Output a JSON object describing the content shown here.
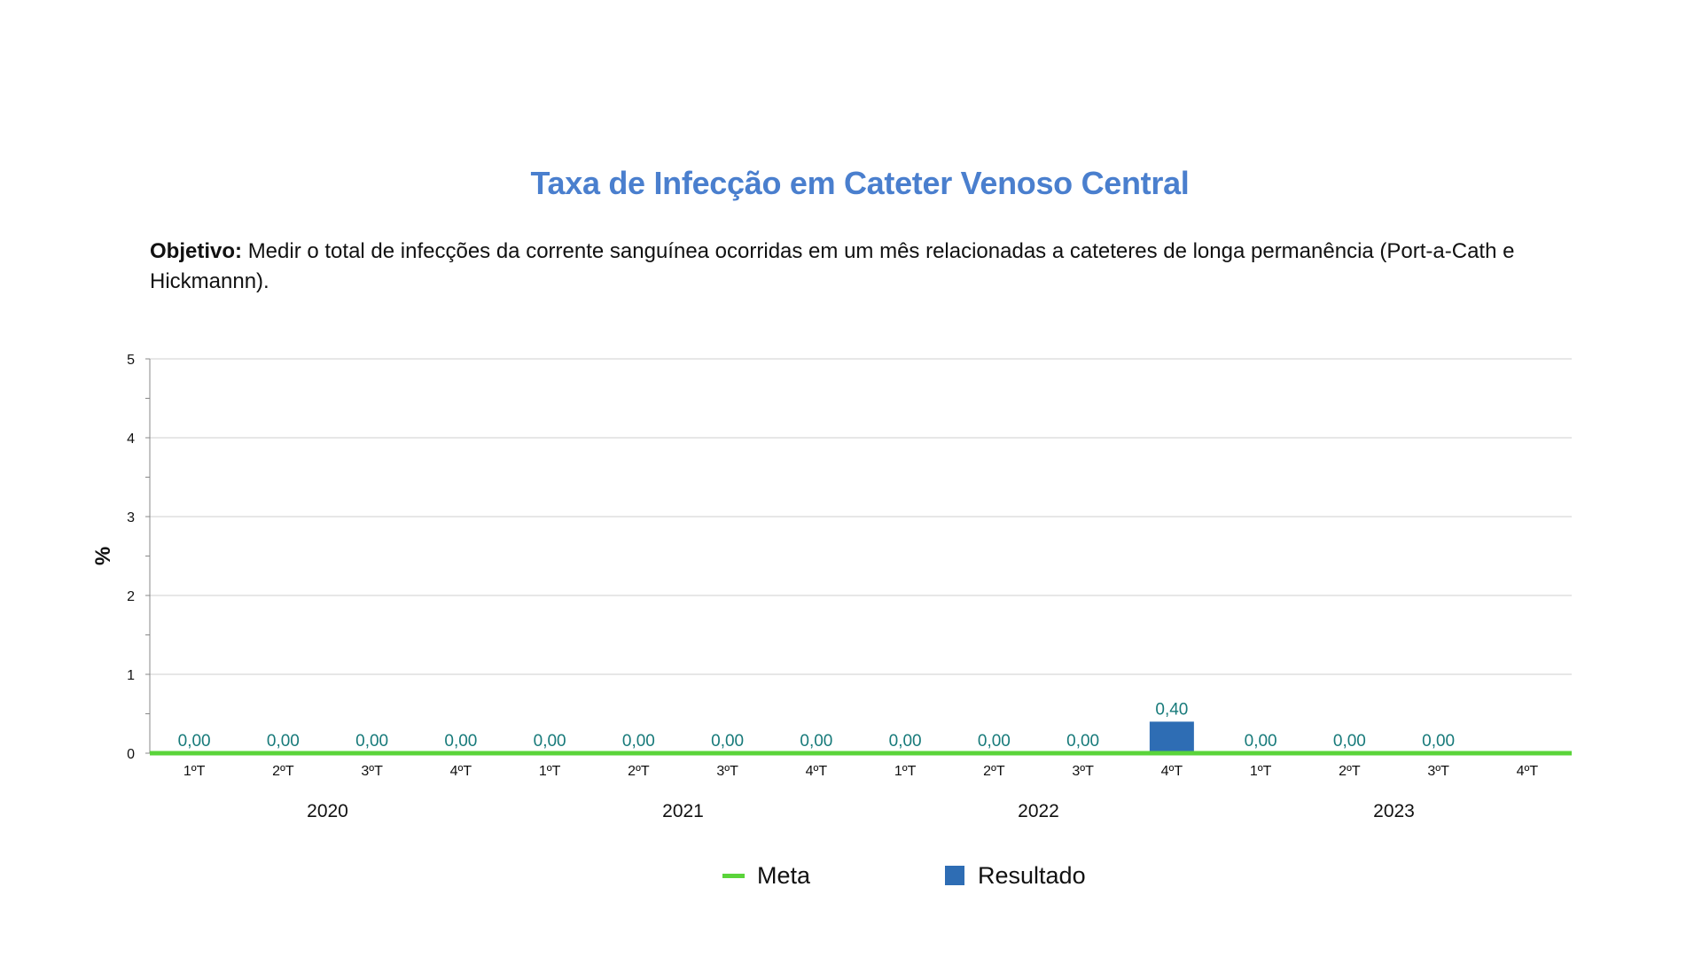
{
  "page": {
    "title": "Taxa de Infecção em Cateter Venoso Central",
    "objective_label": "Objetivo:",
    "objective_text": "Medir o total de infecções da corrente sanguínea ocorridas em um mês relacionadas a cateteres de longa permanência (Port-a-Cath e Hickmannn)."
  },
  "colors": {
    "title": "#4a7fce",
    "bar": "#2e6db4",
    "meta_line": "#5ad43a",
    "data_label": "#177a7a",
    "grid": "#cfcfcf",
    "text": "#111111"
  },
  "chart_data": {
    "type": "bar",
    "ylabel": "%",
    "ylim": [
      0,
      5
    ],
    "yticks": [
      "0",
      "1",
      "2",
      "3",
      "4",
      "5"
    ],
    "grid": true,
    "legend_position": "bottom",
    "groups": [
      "2020",
      "2021",
      "2022",
      "2023"
    ],
    "categories": [
      "1ºT",
      "2ºT",
      "3ºT",
      "4ºT",
      "1ºT",
      "2ºT",
      "3ºT",
      "4ºT",
      "1ºT",
      "2ºT",
      "3ºT",
      "4ºT",
      "1ºT",
      "2ºT",
      "3ºT",
      "4ºT"
    ],
    "series": [
      {
        "name": "Resultado",
        "type": "bar",
        "values": [
          0,
          0,
          0,
          0,
          0,
          0,
          0,
          0,
          0,
          0,
          0,
          0.4,
          0,
          0,
          0,
          null
        ],
        "labels": [
          "0,00",
          "0,00",
          "0,00",
          "0,00",
          "0,00",
          "0,00",
          "0,00",
          "0,00",
          "0,00",
          "0,00",
          "0,00",
          "0,40",
          "0,00",
          "0,00",
          "0,00",
          ""
        ]
      },
      {
        "name": "Meta",
        "type": "line",
        "values": [
          0,
          0,
          0,
          0,
          0,
          0,
          0,
          0,
          0,
          0,
          0,
          0,
          0,
          0,
          0,
          0
        ]
      }
    ]
  }
}
